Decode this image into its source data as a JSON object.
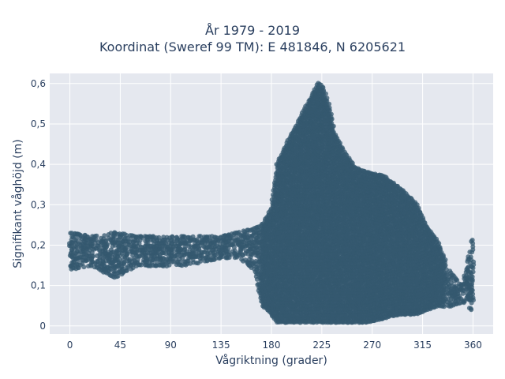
{
  "chart_data": {
    "type": "scatter",
    "title_lines": [
      "År 1979 - 2019",
      "Koordinat (Sweref 99 TM): E 481846, N 6205621"
    ],
    "xlabel": "Vågriktning (grader)",
    "ylabel": "Signifikant våghöjd (m)",
    "xlim": [
      -18,
      378
    ],
    "ylim": [
      -0.02,
      0.625
    ],
    "x_ticks": [
      0,
      45,
      90,
      135,
      180,
      225,
      270,
      315,
      360
    ],
    "x_tick_labels": [
      "0",
      "45",
      "90",
      "135",
      "180",
      "225",
      "270",
      "315",
      "360"
    ],
    "y_ticks": [
      0,
      0.1,
      0.2,
      0.3,
      0.4,
      0.5,
      0.6
    ],
    "y_tick_labels": [
      "0",
      "0,1",
      "0,2",
      "0,3",
      "0,4",
      "0,5",
      "0,6"
    ],
    "grid": true,
    "legend": false,
    "marker_color": "#34586f",
    "plot_background": "#e5e8ef",
    "envelope": [
      [
        0,
        0.14,
        0.23
      ],
      [
        20,
        0.15,
        0.22
      ],
      [
        40,
        0.12,
        0.23
      ],
      [
        60,
        0.15,
        0.22
      ],
      [
        80,
        0.15,
        0.22
      ],
      [
        100,
        0.15,
        0.22
      ],
      [
        120,
        0.16,
        0.22
      ],
      [
        135,
        0.17,
        0.22
      ],
      [
        150,
        0.17,
        0.23
      ],
      [
        165,
        0.14,
        0.24
      ],
      [
        172,
        0.05,
        0.25
      ],
      [
        180,
        0.03,
        0.29
      ],
      [
        185,
        0.01,
        0.4
      ],
      [
        195,
        0.01,
        0.46
      ],
      [
        205,
        0.01,
        0.51
      ],
      [
        212,
        0.01,
        0.55
      ],
      [
        218,
        0.01,
        0.58
      ],
      [
        222,
        0.01,
        0.6
      ],
      [
        226,
        0.01,
        0.59
      ],
      [
        232,
        0.01,
        0.54
      ],
      [
        236,
        0.01,
        0.48
      ],
      [
        245,
        0.01,
        0.43
      ],
      [
        255,
        0.01,
        0.39
      ],
      [
        265,
        0.01,
        0.38
      ],
      [
        280,
        0.02,
        0.37
      ],
      [
        295,
        0.03,
        0.34
      ],
      [
        310,
        0.03,
        0.3
      ],
      [
        318,
        0.04,
        0.25
      ],
      [
        328,
        0.05,
        0.21
      ],
      [
        340,
        0.05,
        0.13
      ],
      [
        350,
        0.06,
        0.1
      ],
      [
        360,
        0.04,
        0.22
      ]
    ]
  }
}
